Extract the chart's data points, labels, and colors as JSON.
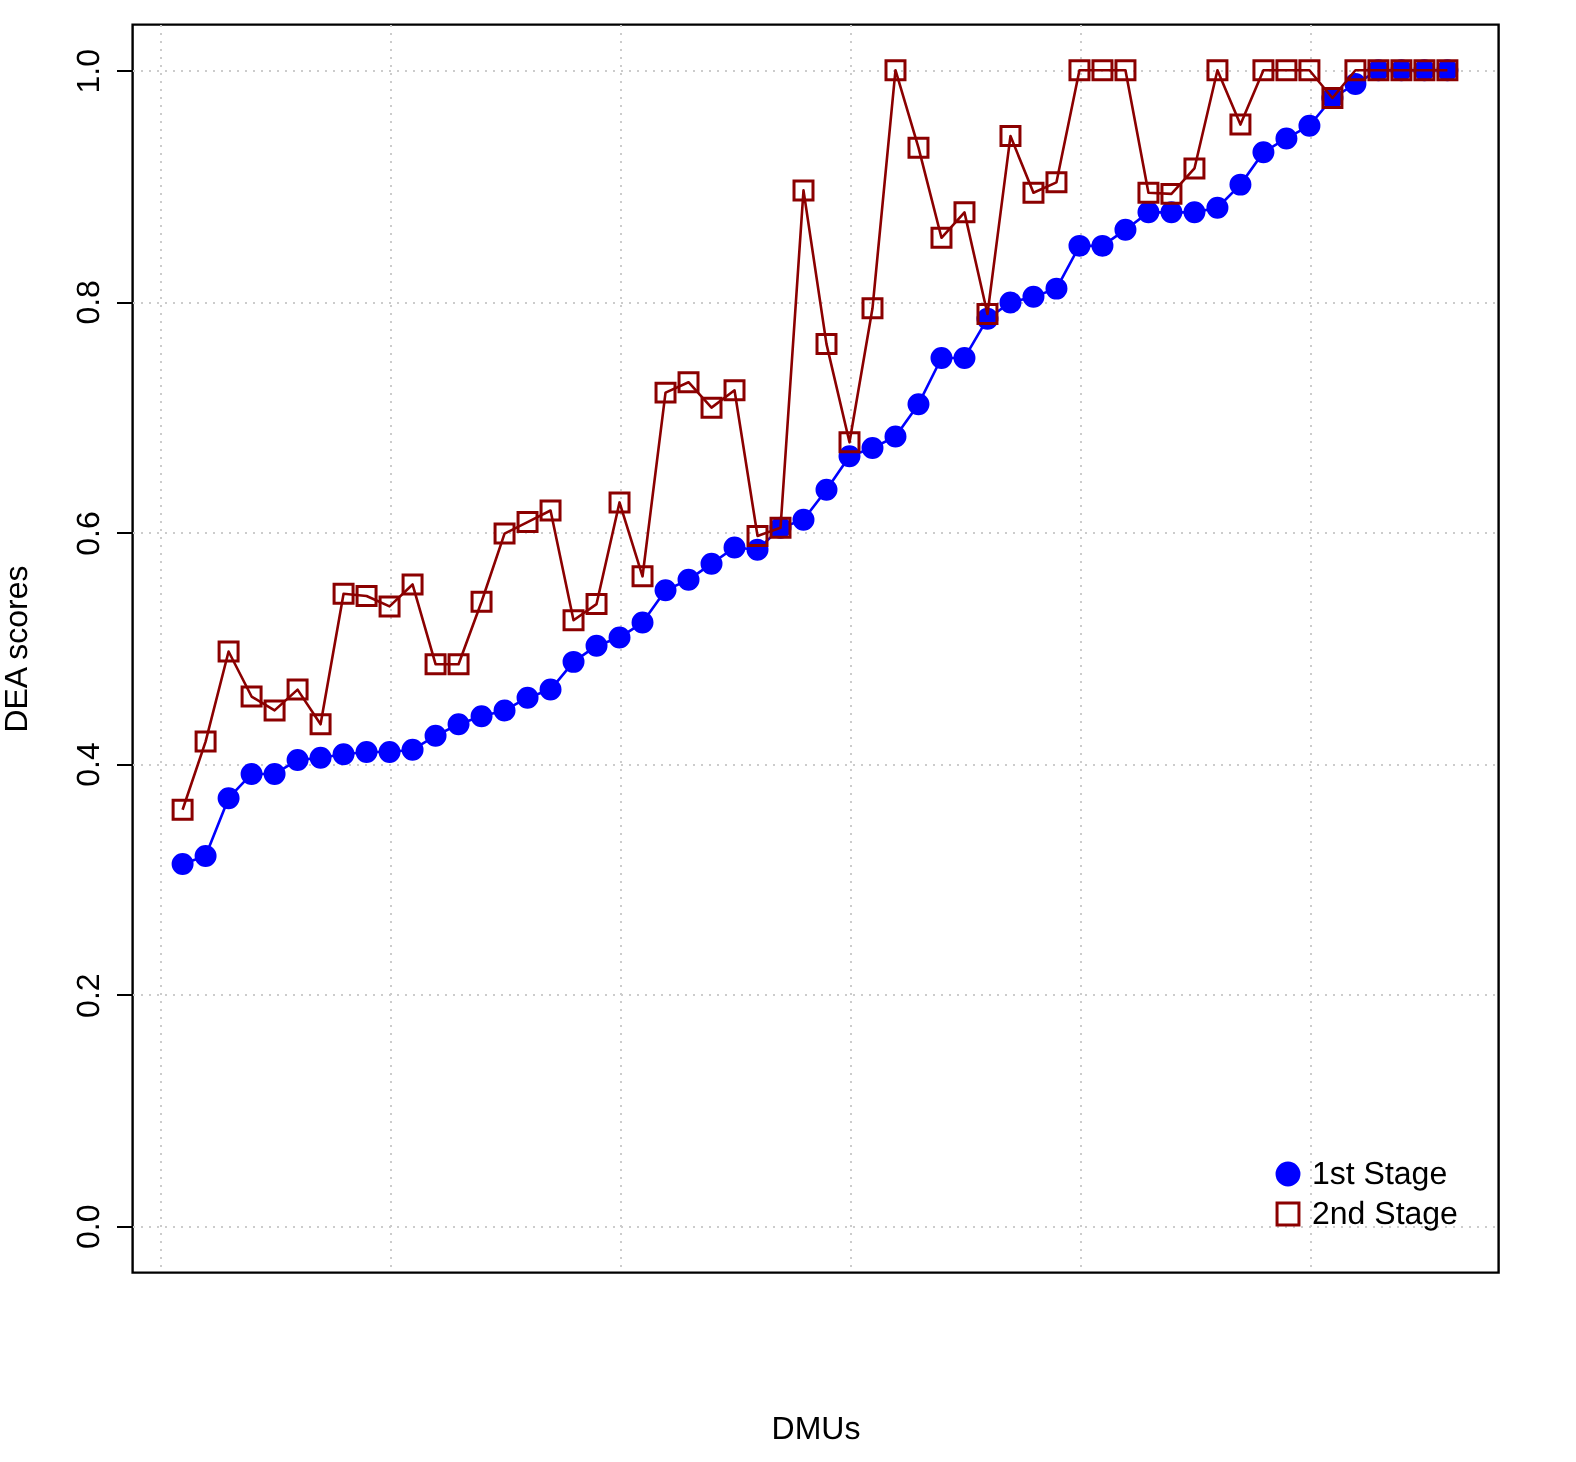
{
  "chart_data": {
    "type": "line",
    "xlabel": "DMUs",
    "ylabel": "DEA scores",
    "categories": [
      null,
      null,
      null,
      null,
      null,
      null,
      null,
      null,
      null,
      null,
      null,
      null,
      null,
      null,
      null,
      null,
      null,
      null,
      null,
      null,
      null,
      null,
      null,
      null,
      null,
      null,
      null,
      null,
      null,
      null,
      null,
      null,
      null,
      null,
      null,
      null,
      null,
      null,
      null,
      null,
      null,
      null,
      null,
      null,
      null,
      null,
      null,
      null,
      null,
      null,
      null,
      null,
      null,
      null,
      null,
      null
    ],
    "ylim": [
      -0.04,
      1.04
    ],
    "yticks": [
      {
        "value": 0,
        "label": "0.0"
      },
      {
        "value": 0.2,
        "label": "0.2"
      },
      {
        "value": 0.4,
        "label": "0.4"
      },
      {
        "value": 0.6,
        "label": "0.6"
      },
      {
        "value": 0.8,
        "label": "0.8"
      },
      {
        "value": 1,
        "label": "1.0"
      }
    ],
    "tick_labels": "y",
    "grid": true,
    "legend": "bottom right",
    "line_style": "solid",
    "series": [
      {
        "name": "1st Stage",
        "color": "#0000ff",
        "marker": "circle",
        "values": [
          0.313,
          0.32,
          0.37,
          0.391,
          0.391,
          0.403,
          0.405,
          0.408,
          0.41,
          0.41,
          0.412,
          0.424,
          0.434,
          0.441,
          0.446,
          0.457,
          0.464,
          0.488,
          0.502,
          0.509,
          0.522,
          0.55,
          0.559,
          0.573,
          0.587,
          0.585,
          0.604,
          0.611,
          0.637,
          0.666,
          0.673,
          0.683,
          0.711,
          0.751,
          0.751,
          0.785,
          0.799,
          0.804,
          0.811,
          0.848,
          0.848,
          0.862,
          0.877,
          0.877,
          0.877,
          0.881,
          0.901,
          0.929,
          0.941,
          0.952,
          0.976,
          0.988,
          1.0,
          1.0,
          1.0,
          1.0
        ]
      },
      {
        "name": "2nd Stage",
        "color": "#8b0000",
        "marker": "square",
        "values": [
          0.36,
          0.419,
          0.497,
          0.458,
          0.446,
          0.464,
          0.434,
          0.547,
          0.545,
          0.536,
          0.555,
          0.486,
          0.486,
          0.54,
          0.599,
          0.609,
          0.619,
          0.524,
          0.538,
          0.626,
          0.562,
          0.721,
          0.73,
          0.708,
          0.723,
          0.597,
          0.604,
          0.896,
          0.763,
          0.678,
          0.794,
          1.0,
          0.933,
          0.855,
          0.877,
          0.789,
          0.943,
          0.894,
          0.903,
          1.0,
          1.0,
          1.0,
          0.894,
          0.893,
          0.915,
          1.0,
          0.953,
          1.0,
          1.0,
          1.0,
          0.976,
          1.0,
          1.0,
          1.0,
          1.0,
          1.0
        ]
      }
    ]
  }
}
